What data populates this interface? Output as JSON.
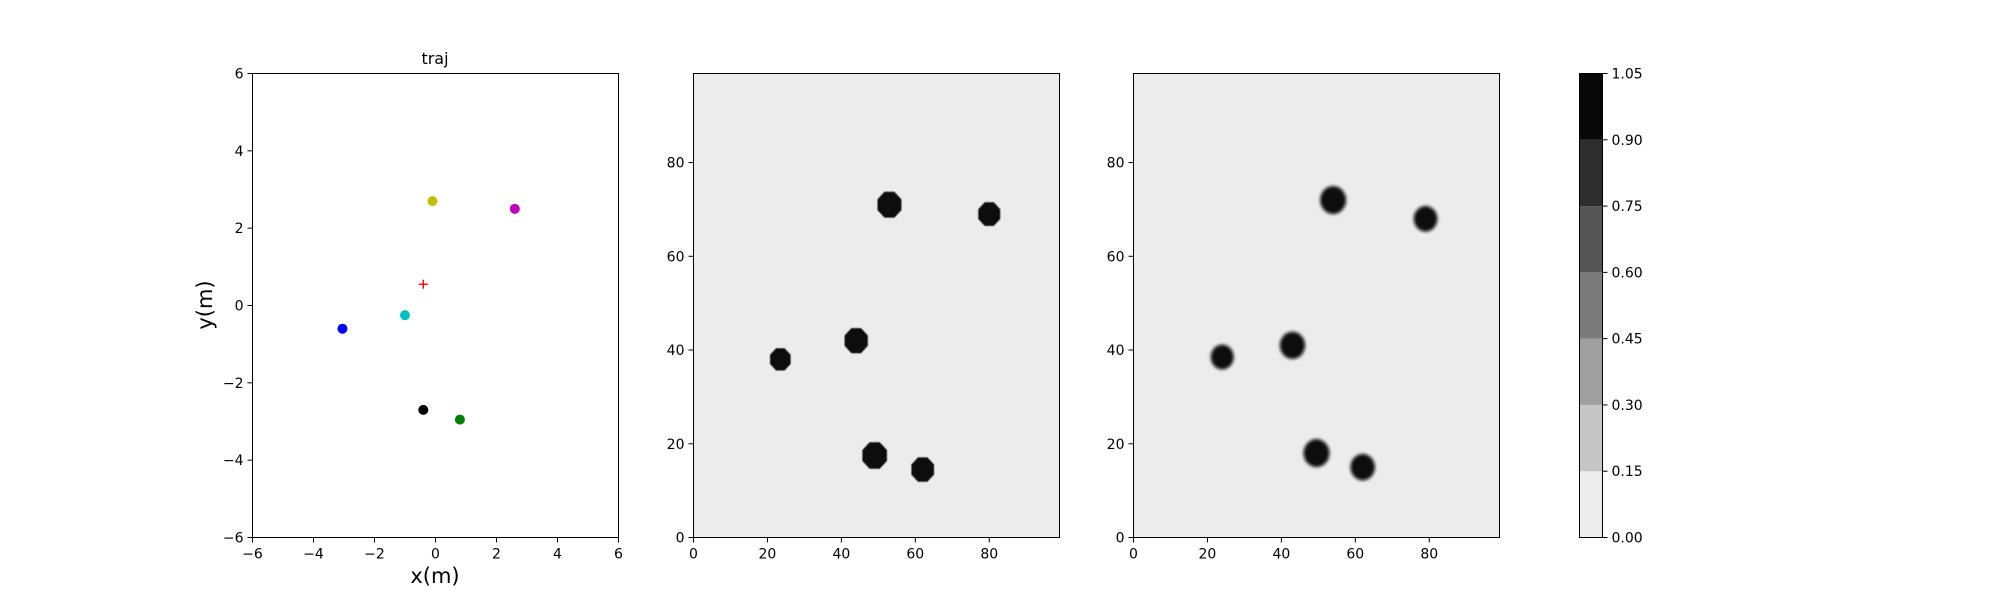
{
  "chart_data": [
    {
      "type": "scatter",
      "title": "traj",
      "xlabel": "x(m)",
      "ylabel": "y(m)",
      "xlim": [
        -6,
        6
      ],
      "ylim": [
        -6,
        6
      ],
      "xticks": [
        -6,
        -4,
        -2,
        0,
        2,
        4,
        6
      ],
      "yticks": [
        -6,
        -4,
        -2,
        0,
        2,
        4,
        6
      ],
      "grid": false,
      "points": [
        {
          "x": 2.6,
          "y": 2.5,
          "color": "#bf00bf",
          "marker": "circle"
        },
        {
          "x": -0.1,
          "y": 2.7,
          "color": "#bfbf00",
          "marker": "circle"
        },
        {
          "x": -0.4,
          "y": 0.55,
          "color": "#ff0000",
          "marker": "plus"
        },
        {
          "x": -1.0,
          "y": -0.25,
          "color": "#00bfbf",
          "marker": "circle"
        },
        {
          "x": -3.05,
          "y": -0.6,
          "color": "#0000ff",
          "marker": "circle"
        },
        {
          "x": -0.4,
          "y": -2.7,
          "color": "#000000",
          "marker": "circle"
        },
        {
          "x": 0.8,
          "y": -2.95,
          "color": "#008000",
          "marker": "circle"
        }
      ]
    },
    {
      "type": "heatmap",
      "title": "",
      "xlabel": "",
      "ylabel": "",
      "xlim": [
        0,
        99
      ],
      "ylim": [
        0,
        99
      ],
      "xticks": [
        0,
        20,
        40,
        60,
        80
      ],
      "yticks": [
        0,
        20,
        40,
        60,
        80
      ],
      "background_value": 0.05,
      "blobs": [
        {
          "x": 53,
          "y": 71,
          "radius": 3.5,
          "value": 1.0
        },
        {
          "x": 80,
          "y": 69,
          "radius": 3.2,
          "value": 1.0
        },
        {
          "x": 44,
          "y": 42,
          "radius": 3.4,
          "value": 1.0
        },
        {
          "x": 23.5,
          "y": 38,
          "radius": 3.0,
          "value": 1.0
        },
        {
          "x": 49,
          "y": 17.5,
          "radius": 3.6,
          "value": 1.0
        },
        {
          "x": 62,
          "y": 14.5,
          "radius": 3.3,
          "value": 1.0
        }
      ]
    },
    {
      "type": "heatmap",
      "title": "",
      "xlabel": "",
      "ylabel": "",
      "xlim": [
        0,
        99
      ],
      "ylim": [
        0,
        99
      ],
      "xticks": [
        0,
        20,
        40,
        60,
        80
      ],
      "yticks": [
        0,
        20,
        40,
        60,
        80
      ],
      "background_value": 0.05,
      "blobs": [
        {
          "x": 54,
          "y": 72,
          "radius": 3.5,
          "value": 1.0
        },
        {
          "x": 79,
          "y": 68,
          "radius": 3.2,
          "value": 1.0
        },
        {
          "x": 43,
          "y": 41,
          "radius": 3.4,
          "value": 1.0
        },
        {
          "x": 24,
          "y": 38.5,
          "radius": 3.1,
          "value": 1.0
        },
        {
          "x": 49.5,
          "y": 18,
          "radius": 3.5,
          "value": 1.0
        },
        {
          "x": 62,
          "y": 15,
          "radius": 3.3,
          "value": 1.0
        }
      ]
    }
  ],
  "colorbar": {
    "levels": [
      0.0,
      0.15,
      0.3,
      0.45,
      0.6,
      0.75,
      0.9,
      1.05
    ],
    "tick_labels": [
      "0.00",
      "0.15",
      "0.30",
      "0.45",
      "0.60",
      "0.75",
      "0.90",
      "1.05"
    ],
    "colors": [
      "#ececec",
      "#c6c6c6",
      "#9f9f9f",
      "#7b7b7b",
      "#555555",
      "#2d2d2d",
      "#080808"
    ]
  }
}
